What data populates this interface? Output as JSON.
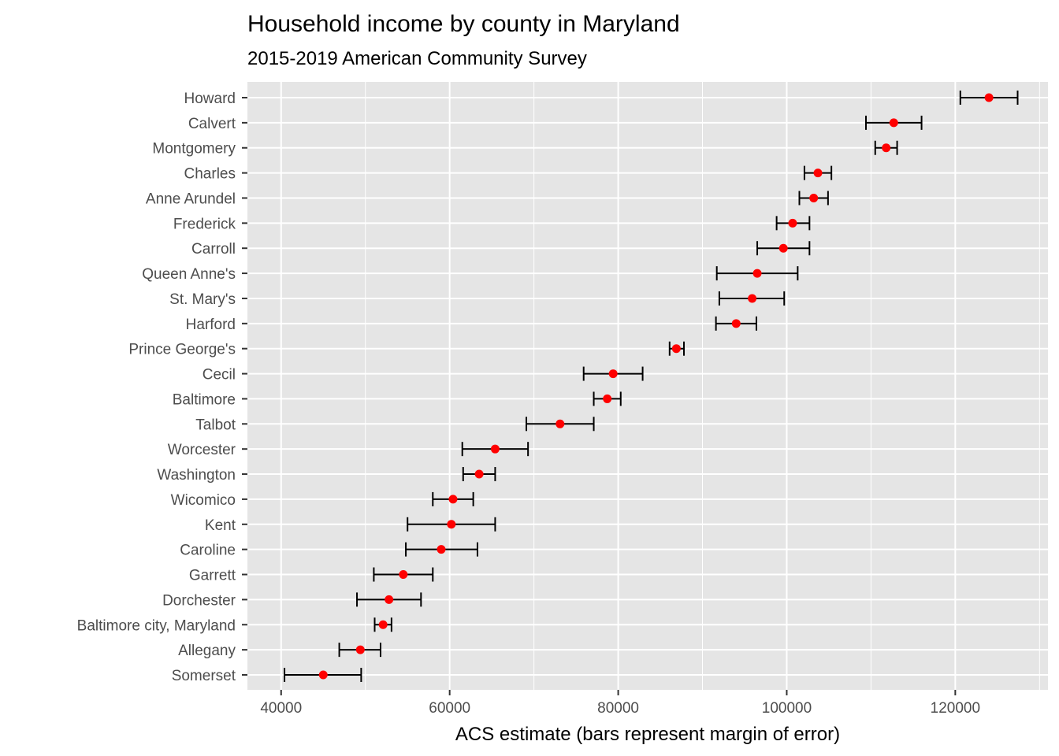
{
  "chart_data": {
    "type": "scatter",
    "title": "Household income by county in Maryland",
    "subtitle": "2015-2019 American Community Survey",
    "xlabel": "ACS estimate (bars represent margin of error)",
    "ylabel": "",
    "xlim": [
      36000,
      131000
    ],
    "x_ticks": [
      40000,
      60000,
      80000,
      100000,
      120000
    ],
    "x_tick_labels": [
      "40000",
      "60000",
      "80000",
      "100000",
      "120000"
    ],
    "grid": true,
    "legend": "none",
    "point_color": "#ff0000",
    "errorbar_color": "#000000",
    "panel_background": "#e5e5e5",
    "grid_color": "#ffffff",
    "points": [
      {
        "county": "Howard",
        "estimate": 124000,
        "low": 120600,
        "high": 127400
      },
      {
        "county": "Calvert",
        "estimate": 112700,
        "low": 109400,
        "high": 116000
      },
      {
        "county": "Montgomery",
        "estimate": 111800,
        "low": 110500,
        "high": 113100
      },
      {
        "county": "Charles",
        "estimate": 103700,
        "low": 102100,
        "high": 105300
      },
      {
        "county": "Anne Arundel",
        "estimate": 103200,
        "low": 101500,
        "high": 104900
      },
      {
        "county": "Frederick",
        "estimate": 100700,
        "low": 98800,
        "high": 102700
      },
      {
        "county": "Carroll",
        "estimate": 99600,
        "low": 96500,
        "high": 102700
      },
      {
        "county": "Queen Anne's",
        "estimate": 96500,
        "low": 91700,
        "high": 101300
      },
      {
        "county": "St. Mary's",
        "estimate": 95900,
        "low": 92000,
        "high": 99700
      },
      {
        "county": "Harford",
        "estimate": 94000,
        "low": 91600,
        "high": 96400
      },
      {
        "county": "Prince George's",
        "estimate": 86900,
        "low": 86100,
        "high": 87800
      },
      {
        "county": "Cecil",
        "estimate": 79400,
        "low": 75900,
        "high": 82900
      },
      {
        "county": "Baltimore",
        "estimate": 78700,
        "low": 77100,
        "high": 80300
      },
      {
        "county": "Talbot",
        "estimate": 73100,
        "low": 69100,
        "high": 77100
      },
      {
        "county": "Worcester",
        "estimate": 65400,
        "low": 61500,
        "high": 69300
      },
      {
        "county": "Washington",
        "estimate": 63500,
        "low": 61600,
        "high": 65400
      },
      {
        "county": "Wicomico",
        "estimate": 60400,
        "low": 58000,
        "high": 62800
      },
      {
        "county": "Kent",
        "estimate": 60200,
        "low": 55000,
        "high": 65400
      },
      {
        "county": "Caroline",
        "estimate": 59000,
        "low": 54800,
        "high": 63300
      },
      {
        "county": "Garrett",
        "estimate": 54500,
        "low": 51000,
        "high": 58000
      },
      {
        "county": "Dorchester",
        "estimate": 52800,
        "low": 49000,
        "high": 56600
      },
      {
        "county": "Baltimore city, Maryland",
        "estimate": 52100,
        "low": 51100,
        "high": 53100
      },
      {
        "county": "Allegany",
        "estimate": 49400,
        "low": 46900,
        "high": 51800
      },
      {
        "county": "Somerset",
        "estimate": 45000,
        "low": 40400,
        "high": 49500
      }
    ]
  }
}
